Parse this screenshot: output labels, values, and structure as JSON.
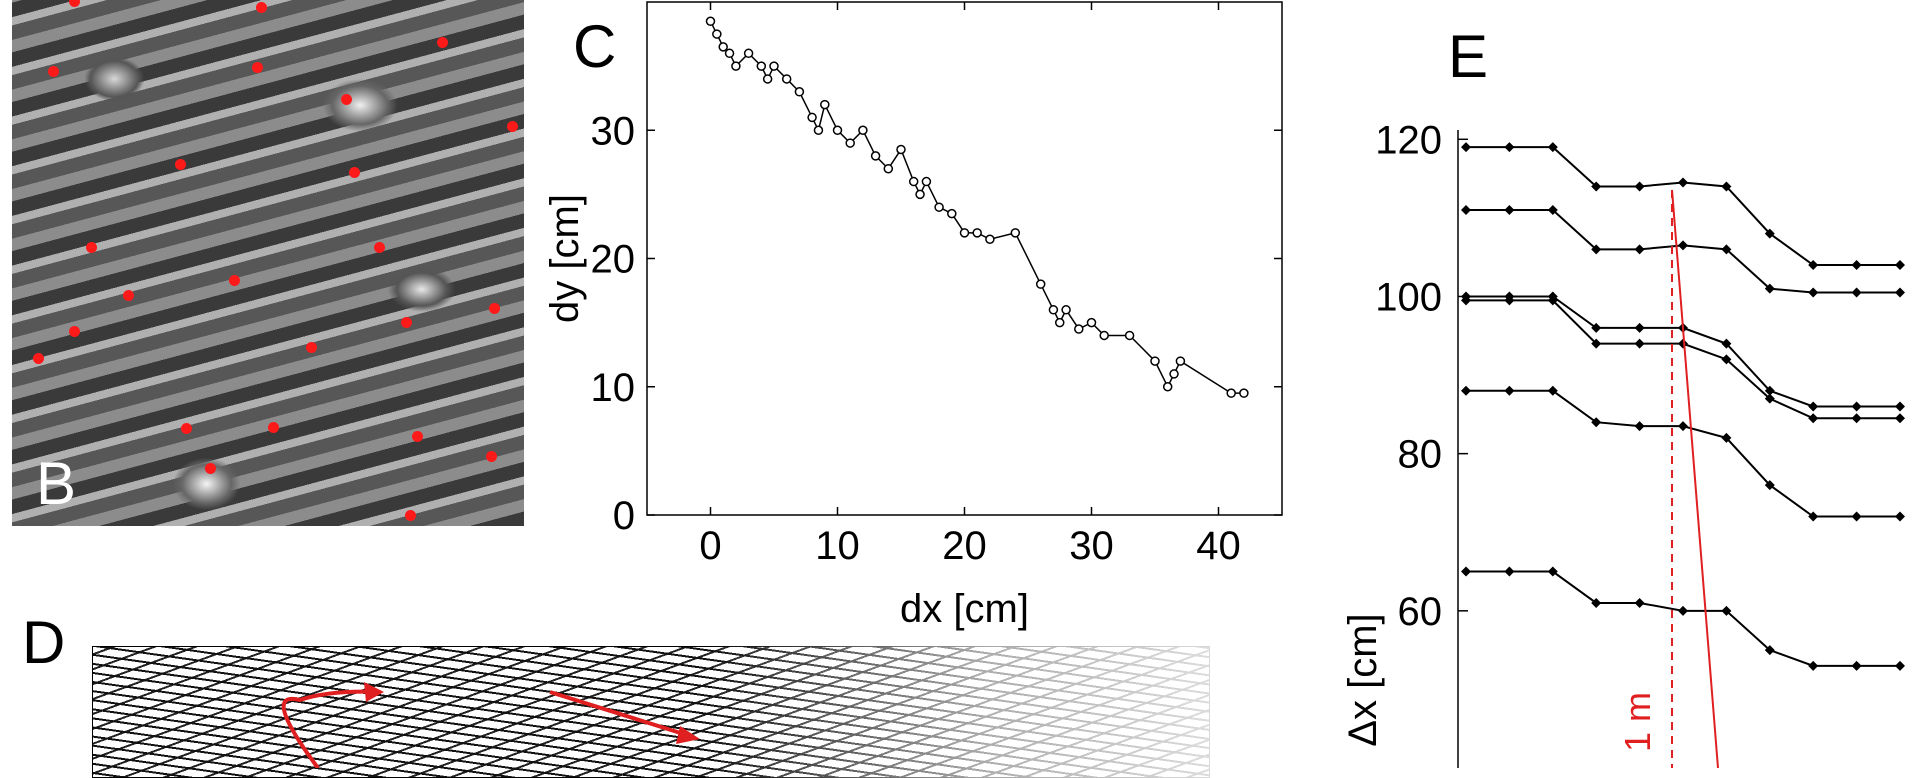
{
  "panels": {
    "B": {
      "letter": "B"
    },
    "C": {
      "letter": "C"
    },
    "D": {
      "letter": "D"
    },
    "E": {
      "letter": "E"
    }
  },
  "chart_data": [
    {
      "panel": "C",
      "type": "line",
      "xlabel": "dx [cm]",
      "ylabel": "dy [cm]",
      "xlim": [
        -5,
        45
      ],
      "ylim": [
        0,
        40
      ],
      "xticks": [
        "0",
        "10",
        "20",
        "30",
        "40"
      ],
      "yticks": [
        "0",
        "10",
        "20",
        "30"
      ],
      "x": [
        0,
        0.5,
        1,
        1.5,
        2,
        3,
        4,
        4.5,
        5,
        6,
        7,
        8,
        8.5,
        9,
        10,
        11,
        12,
        13,
        14,
        15,
        16,
        16.5,
        17,
        18,
        19,
        20,
        21,
        22,
        24,
        26,
        27,
        27.5,
        28,
        29,
        30,
        31,
        33,
        35,
        36,
        36.5,
        37,
        41,
        42
      ],
      "y": [
        38.5,
        37.5,
        36.5,
        36,
        35,
        36,
        35,
        34,
        35,
        34,
        33,
        31,
        30,
        32,
        30,
        29,
        30,
        28,
        27,
        28.5,
        26,
        25,
        26,
        24,
        23.5,
        22,
        22,
        21.5,
        22,
        18,
        16,
        15,
        16,
        14.5,
        15,
        14,
        14,
        12,
        10,
        11,
        12,
        9.5,
        9.5
      ]
    },
    {
      "panel": "E",
      "type": "line",
      "ylabel": "Δx [cm]",
      "ylim": [
        40,
        125
      ],
      "yticks": [
        "60",
        "80",
        "100",
        "120"
      ],
      "annotation": "1 m",
      "series": [
        {
          "values": [
            119,
            119,
            119,
            114,
            114,
            114.5,
            114,
            108,
            104,
            104,
            104
          ]
        },
        {
          "values": [
            111,
            111,
            111,
            106,
            106,
            106.5,
            106,
            101,
            100.5,
            100.5,
            100.5
          ]
        },
        {
          "values": [
            100,
            100,
            100,
            96,
            96,
            96,
            94,
            88,
            86,
            86,
            86
          ]
        },
        {
          "values": [
            99.5,
            99.5,
            99.5,
            94,
            94,
            94,
            92,
            87,
            84.5,
            84.5,
            84.5
          ]
        },
        {
          "values": [
            88,
            88,
            88,
            84,
            83.5,
            83.5,
            82,
            76,
            72,
            72,
            72
          ]
        },
        {
          "values": [
            65,
            65,
            65,
            61,
            61,
            60,
            60,
            55,
            53,
            53,
            53
          ]
        }
      ]
    }
  ]
}
